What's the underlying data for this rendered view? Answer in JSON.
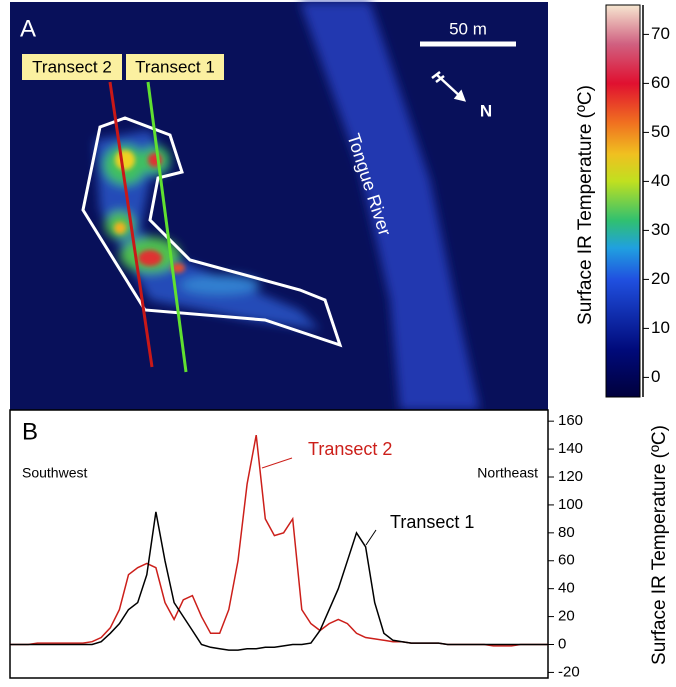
{
  "panel_a": {
    "label": "A",
    "scale_label": "50 m",
    "north_label": "N",
    "river_label": "Tongue River",
    "transect_labels": [
      "Transect 2",
      "Transect 1"
    ],
    "colorbar": {
      "label": "Surface IR Temperature (ºC)",
      "ylim": [
        -4,
        76
      ],
      "yticks": [
        0,
        10,
        20,
        30,
        40,
        50,
        60,
        70
      ]
    }
  },
  "chart_data": {
    "type": "line",
    "panel_label": "B",
    "ylabel": "Surface IR Temperature (ºC)",
    "annotations": [
      "Southwest",
      "Northeast"
    ],
    "ylim": [
      -24,
      168
    ],
    "yticks": [
      -20,
      0,
      20,
      40,
      60,
      80,
      100,
      120,
      140,
      160
    ],
    "series": [
      {
        "name": "Transect 2",
        "color": "#cc1f1a",
        "values": [
          0,
          0,
          0,
          1,
          1,
          1,
          1,
          1,
          1,
          2,
          5,
          12,
          25,
          50,
          55,
          58,
          55,
          30,
          18,
          32,
          35,
          20,
          8,
          8,
          25,
          60,
          115,
          150,
          90,
          78,
          80,
          90,
          25,
          15,
          10,
          15,
          18,
          15,
          8,
          5,
          4,
          3,
          2,
          2,
          1,
          1,
          1,
          1,
          0,
          0,
          0,
          0,
          0,
          -1,
          -1,
          -1,
          0,
          0,
          0,
          0
        ]
      },
      {
        "name": "Transect 1",
        "color": "#000000",
        "values": [
          0,
          0,
          0,
          0,
          0,
          0,
          0,
          0,
          0,
          0,
          2,
          8,
          15,
          25,
          30,
          50,
          95,
          60,
          30,
          20,
          10,
          0,
          -2,
          -3,
          -4,
          -4,
          -3,
          -3,
          -2,
          -2,
          -1,
          0,
          0,
          1,
          10,
          25,
          40,
          60,
          80,
          70,
          30,
          8,
          3,
          2,
          1,
          1,
          1,
          1,
          0,
          0,
          0,
          0,
          0,
          0,
          0,
          0,
          0,
          0,
          0,
          0
        ]
      }
    ]
  }
}
